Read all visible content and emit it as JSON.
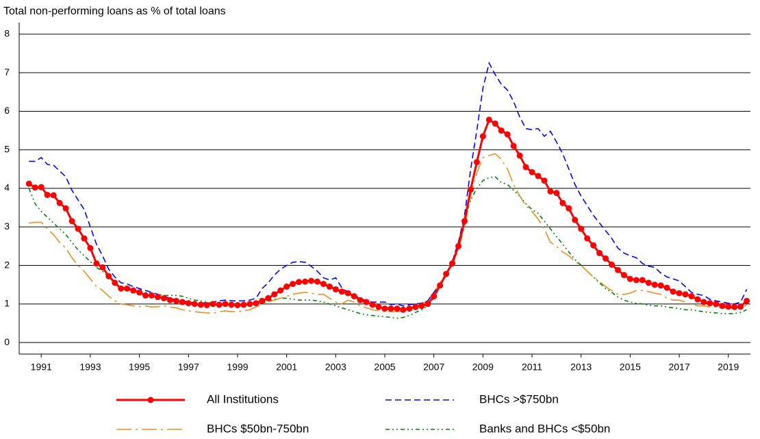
{
  "chart_data": {
    "type": "line",
    "title": "Total non-performing loans as % of total loans",
    "x": [
      1991,
      1991.25,
      1991.5,
      1991.75,
      1992,
      1992.25,
      1992.5,
      1992.75,
      1993,
      1993.25,
      1993.5,
      1993.75,
      1994,
      1994.25,
      1994.5,
      1994.75,
      1995,
      1995.25,
      1995.5,
      1995.75,
      1996,
      1996.25,
      1996.5,
      1996.75,
      1997,
      1997.25,
      1997.5,
      1997.75,
      1998,
      1998.25,
      1998.5,
      1998.75,
      1999,
      1999.25,
      1999.5,
      1999.75,
      2000,
      2000.25,
      2000.5,
      2000.75,
      2001,
      2001.25,
      2001.5,
      2001.75,
      2002,
      2002.25,
      2002.5,
      2002.75,
      2003,
      2003.25,
      2003.5,
      2003.75,
      2004,
      2004.25,
      2004.5,
      2004.75,
      2005,
      2005.25,
      2005.5,
      2005.75,
      2006,
      2006.25,
      2006.5,
      2006.75,
      2007,
      2007.25,
      2007.5,
      2007.75,
      2008,
      2008.25,
      2008.5,
      2008.75,
      2009,
      2009.25,
      2009.5,
      2009.75,
      2010,
      2010.25,
      2010.5,
      2010.75,
      2011,
      2011.25,
      2011.5,
      2011.75,
      2012,
      2012.25,
      2012.5,
      2012.75,
      2013,
      2013.25,
      2013.5,
      2013.75,
      2014,
      2014.25,
      2014.5,
      2014.75,
      2015,
      2015.25,
      2015.5,
      2015.75,
      2016,
      2016.25,
      2016.5,
      2016.75,
      2017,
      2017.25,
      2017.5,
      2017.75,
      2018,
      2018.25,
      2018.5,
      2018.75,
      2019,
      2019.25,
      2019.5,
      2019.75,
      2020,
      2020.25
    ],
    "xlim": [
      1990.6,
      2020.4
    ],
    "xticks": [
      {
        "value": 1991.5,
        "label": "1991"
      },
      {
        "value": 1993.5,
        "label": "1993"
      },
      {
        "value": 1995.5,
        "label": "1995"
      },
      {
        "value": 1997.5,
        "label": "1997"
      },
      {
        "value": 1999.5,
        "label": "1999"
      },
      {
        "value": 2001.5,
        "label": "2001"
      },
      {
        "value": 2003.5,
        "label": "2003"
      },
      {
        "value": 2005.5,
        "label": "2005"
      },
      {
        "value": 2007.5,
        "label": "2007"
      },
      {
        "value": 2009.5,
        "label": "2009"
      },
      {
        "value": 2011.5,
        "label": "2011"
      },
      {
        "value": 2013.5,
        "label": "2013"
      },
      {
        "value": 2015.5,
        "label": "2015"
      },
      {
        "value": 2017.5,
        "label": "2017"
      },
      {
        "value": 2019.5,
        "label": "2019"
      }
    ],
    "ylim": [
      -0.3,
      8.3
    ],
    "yticks": [
      0,
      1,
      2,
      3,
      4,
      5,
      6,
      7,
      8
    ],
    "grid": true,
    "series": [
      {
        "name": "All Institutions",
        "color": "#ff0000",
        "line_style": "solid",
        "marker": "circle",
        "values": [
          4.12,
          4.02,
          4.03,
          3.83,
          3.82,
          3.62,
          3.48,
          3.15,
          2.95,
          2.7,
          2.45,
          2.05,
          1.95,
          1.72,
          1.55,
          1.4,
          1.4,
          1.35,
          1.3,
          1.22,
          1.22,
          1.18,
          1.15,
          1.1,
          1.08,
          1.05,
          1.02,
          1.0,
          0.98,
          0.97,
          1.0,
          0.98,
          1.0,
          0.98,
          0.97,
          0.98,
          1.0,
          1.02,
          1.08,
          1.15,
          1.25,
          1.35,
          1.45,
          1.52,
          1.57,
          1.58,
          1.6,
          1.58,
          1.52,
          1.45,
          1.38,
          1.32,
          1.28,
          1.2,
          1.1,
          1.05,
          0.98,
          0.92,
          0.88,
          0.88,
          0.88,
          0.85,
          0.88,
          0.92,
          0.95,
          1.0,
          1.2,
          1.48,
          1.78,
          2.05,
          2.5,
          3.15,
          3.97,
          4.68,
          5.35,
          5.78,
          5.68,
          5.5,
          5.4,
          5.1,
          4.85,
          4.55,
          4.42,
          4.32,
          4.2,
          3.92,
          3.88,
          3.62,
          3.48,
          3.18,
          2.95,
          2.7,
          2.52,
          2.32,
          2.18,
          2.02,
          1.88,
          1.75,
          1.65,
          1.62,
          1.62,
          1.55,
          1.5,
          1.48,
          1.42,
          1.32,
          1.28,
          1.25,
          1.2,
          1.12,
          1.05,
          1.02,
          1.0,
          0.95,
          0.93,
          0.92,
          0.93,
          1.08
        ]
      },
      {
        "name": "BHCs >$750bn",
        "color": "#0000ff",
        "line_style": "dashed",
        "values": [
          4.7,
          4.7,
          4.8,
          4.62,
          4.6,
          4.45,
          4.3,
          3.95,
          3.7,
          3.45,
          3.0,
          2.55,
          2.25,
          1.9,
          1.7,
          1.55,
          1.52,
          1.45,
          1.4,
          1.35,
          1.3,
          1.25,
          1.2,
          1.15,
          1.1,
          1.08,
          1.05,
          1.02,
          1.02,
          1.03,
          1.05,
          1.08,
          1.1,
          1.08,
          1.08,
          1.08,
          1.1,
          1.15,
          1.4,
          1.55,
          1.75,
          1.9,
          2.0,
          2.08,
          2.1,
          2.08,
          1.98,
          1.85,
          1.68,
          1.62,
          1.68,
          1.42,
          1.3,
          1.22,
          1.15,
          1.08,
          1.05,
          1.05,
          1.05,
          0.98,
          1.0,
          0.95,
          0.98,
          1.0,
          1.02,
          1.08,
          1.3,
          1.5,
          1.75,
          2.1,
          2.6,
          3.3,
          4.5,
          5.5,
          6.6,
          7.25,
          6.95,
          6.7,
          6.55,
          6.25,
          5.85,
          5.55,
          5.52,
          5.55,
          5.35,
          5.48,
          5.2,
          4.9,
          4.5,
          4.1,
          3.8,
          3.55,
          3.3,
          3.1,
          2.9,
          2.7,
          2.45,
          2.32,
          2.25,
          2.2,
          2.05,
          1.98,
          1.95,
          1.8,
          1.7,
          1.65,
          1.6,
          1.45,
          1.3,
          1.25,
          1.22,
          1.12,
          1.08,
          1.05,
          1.02,
          1.0,
          1.05,
          1.38
        ]
      },
      {
        "name": "BHCs $50bn-750bn",
        "color": "#e8901e",
        "line_style": "dashdot",
        "values": [
          3.1,
          3.12,
          3.12,
          2.95,
          2.8,
          2.6,
          2.45,
          2.2,
          2.0,
          1.85,
          1.65,
          1.45,
          1.35,
          1.2,
          1.08,
          1.0,
          0.98,
          0.95,
          0.93,
          0.95,
          0.92,
          0.93,
          0.95,
          0.92,
          0.9,
          0.85,
          0.82,
          0.8,
          0.78,
          0.77,
          0.76,
          0.8,
          0.82,
          0.8,
          0.8,
          0.82,
          0.85,
          0.92,
          1.0,
          1.05,
          1.1,
          1.15,
          1.2,
          1.25,
          1.28,
          1.3,
          1.28,
          1.25,
          1.25,
          1.15,
          1.05,
          1.0,
          1.1,
          1.05,
          0.95,
          0.9,
          0.85,
          0.82,
          0.8,
          0.8,
          0.8,
          0.8,
          0.85,
          0.92,
          1.0,
          1.1,
          1.3,
          1.55,
          1.8,
          2.0,
          2.4,
          3.0,
          3.8,
          4.4,
          4.8,
          4.85,
          4.9,
          4.75,
          4.5,
          4.1,
          3.8,
          3.55,
          3.4,
          3.2,
          2.95,
          2.6,
          2.5,
          2.35,
          2.25,
          2.1,
          2.0,
          1.85,
          1.7,
          1.58,
          1.45,
          1.35,
          1.25,
          1.25,
          1.28,
          1.35,
          1.35,
          1.32,
          1.28,
          1.25,
          1.15,
          1.1,
          1.1,
          1.05,
          1.0,
          0.95,
          0.95,
          0.92,
          0.92,
          0.9,
          0.9,
          0.88,
          0.88,
          0.98
        ]
      },
      {
        "name": "Banks and BHCs <$50bn",
        "color": "#008000",
        "line_style": "dashdotdot",
        "values": [
          4.0,
          3.6,
          3.4,
          3.25,
          3.1,
          2.95,
          2.8,
          2.6,
          2.4,
          2.25,
          2.1,
          1.95,
          1.85,
          1.7,
          1.55,
          1.45,
          1.4,
          1.35,
          1.32,
          1.3,
          1.28,
          1.25,
          1.22,
          1.22,
          1.22,
          1.2,
          1.15,
          1.1,
          1.08,
          1.05,
          1.0,
          1.0,
          0.98,
          0.97,
          0.97,
          0.98,
          1.0,
          1.0,
          1.02,
          1.08,
          1.12,
          1.15,
          1.15,
          1.12,
          1.1,
          1.1,
          1.1,
          1.08,
          1.05,
          1.0,
          0.95,
          0.9,
          0.85,
          0.8,
          0.75,
          0.72,
          0.7,
          0.68,
          0.67,
          0.65,
          0.63,
          0.65,
          0.7,
          0.78,
          0.85,
          0.95,
          1.15,
          1.45,
          1.8,
          2.1,
          2.6,
          3.2,
          3.7,
          4.0,
          4.2,
          4.28,
          4.3,
          4.15,
          4.1,
          3.95,
          3.8,
          3.6,
          3.45,
          3.35,
          3.15,
          2.95,
          2.75,
          2.55,
          2.35,
          2.15,
          2.0,
          1.85,
          1.7,
          1.55,
          1.4,
          1.3,
          1.18,
          1.1,
          1.05,
          1.02,
          1.0,
          0.97,
          0.95,
          0.95,
          0.92,
          0.9,
          0.88,
          0.85,
          0.85,
          0.82,
          0.8,
          0.78,
          0.77,
          0.75,
          0.75,
          0.75,
          0.78,
          0.85
        ]
      }
    ]
  }
}
